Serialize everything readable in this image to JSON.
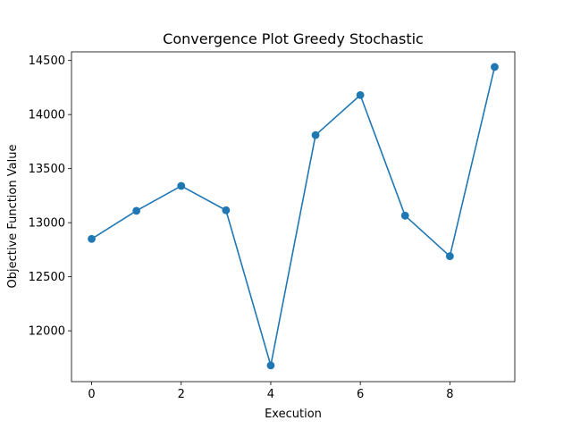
{
  "chart_data": {
    "type": "line",
    "title": "Convergence Plot Greedy Stochastic",
    "xlabel": "Execution",
    "ylabel": "Objective Function Value",
    "x": [
      0,
      1,
      2,
      3,
      4,
      5,
      6,
      7,
      8,
      9
    ],
    "series": [
      {
        "values": [
          12850,
          13110,
          13340,
          13115,
          11680,
          13810,
          14180,
          13065,
          12690,
          14440
        ],
        "color": "#1f77b4",
        "marker": "circle"
      }
    ],
    "xlim": [
      -0.45,
      9.45
    ],
    "ylim": [
      11530,
      14580
    ],
    "xticks": [
      0,
      2,
      4,
      6,
      8
    ],
    "xtick_labels": [
      "0",
      "2",
      "4",
      "6",
      "8"
    ],
    "yticks": [
      12000,
      12500,
      13000,
      13500,
      14000,
      14500
    ],
    "ytick_labels": [
      "12000",
      "12500",
      "13000",
      "13500",
      "14000",
      "14500"
    ],
    "grid": false,
    "legend": false
  }
}
